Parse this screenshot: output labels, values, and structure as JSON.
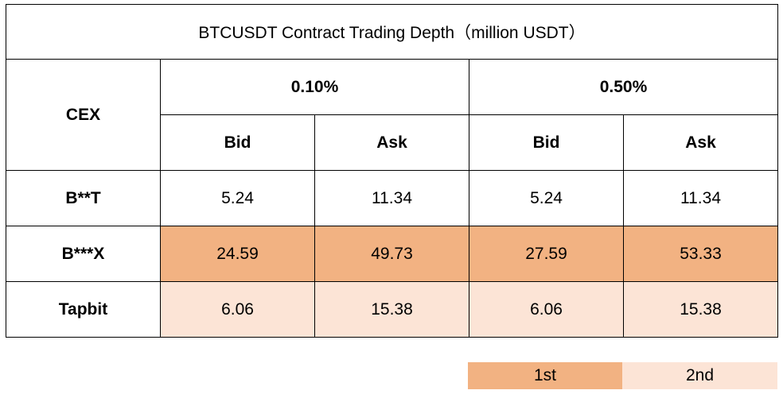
{
  "chart_data": {
    "type": "table",
    "title": "BTCUSDT Contract Trading Depth（million USDT）",
    "corner_label": "CEX",
    "groups": [
      "0.10%",
      "0.50%"
    ],
    "subcolumns": [
      "Bid",
      "Ask"
    ],
    "rows": [
      {
        "exchange": "B**T",
        "values": [
          "5.24",
          "11.34",
          "5.24",
          "11.34"
        ],
        "rank": ""
      },
      {
        "exchange": "B***X",
        "values": [
          "24.59",
          "49.73",
          "27.59",
          "53.33"
        ],
        "rank": "1st"
      },
      {
        "exchange": "Tapbit",
        "values": [
          "6.06",
          "15.38",
          "6.06",
          "15.38"
        ],
        "rank": "2nd"
      }
    ],
    "legend": [
      {
        "label": "1st",
        "color": "#f2b282"
      },
      {
        "label": "2nd",
        "color": "#fce4d6"
      }
    ]
  }
}
